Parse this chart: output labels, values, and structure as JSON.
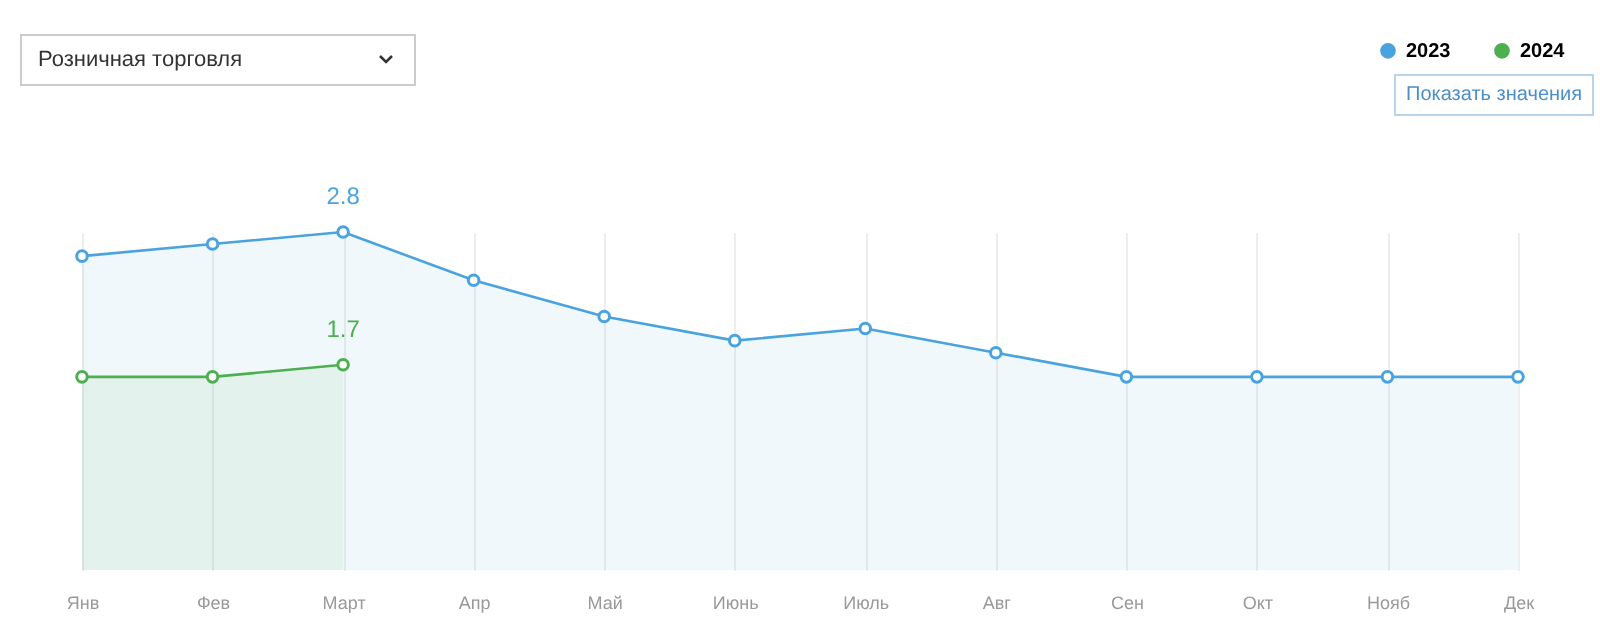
{
  "chart_data": {
    "type": "area",
    "categories": [
      "Янв",
      "Фев",
      "Март",
      "Апр",
      "Май",
      "Июнь",
      "Июль",
      "Авг",
      "Сен",
      "Окт",
      "Нояб",
      "Дек"
    ],
    "series": [
      {
        "name": "2023",
        "color": "#4aa3df",
        "values": [
          2.6,
          2.7,
          2.8,
          2.4,
          2.1,
          1.9,
          2.0,
          1.8,
          1.6,
          1.6,
          1.6,
          1.6
        ],
        "value_labels": [
          null,
          null,
          "2.8",
          null,
          null,
          null,
          null,
          null,
          null,
          null,
          null,
          null
        ]
      },
      {
        "name": "2024",
        "color": "#4caf50",
        "values": [
          1.6,
          1.6,
          1.7,
          null,
          null,
          null,
          null,
          null,
          null,
          null,
          null,
          null
        ],
        "value_labels": [
          null,
          null,
          "1.7",
          null,
          null,
          null,
          null,
          null,
          null,
          null,
          null,
          null
        ]
      }
    ],
    "annotations": [
      "Розничная торговля",
      "Показать значения"
    ],
    "grid": "x",
    "legend": "top right",
    "marker": "circle",
    "line_style": "solid"
  }
}
